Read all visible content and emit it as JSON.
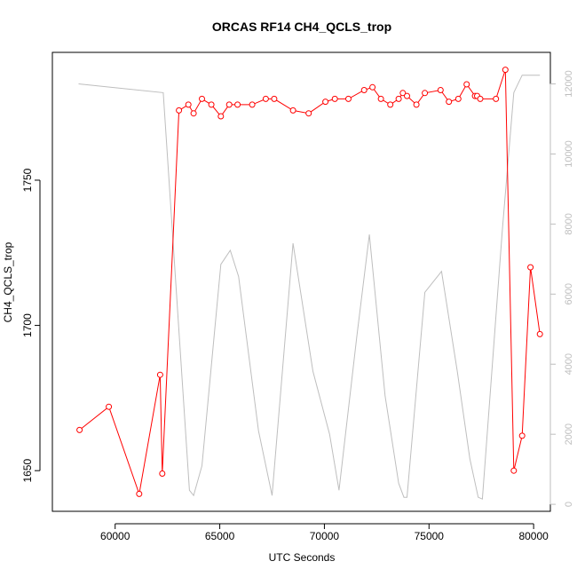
{
  "chart_data": {
    "type": "line",
    "title": "ORCAS RF14 CH4_QCLS_trop",
    "xlabel": "UTC Seconds",
    "ylabel": "CH4_QCLS_trop",
    "xlim": [
      57000,
      80800
    ],
    "ylim": [
      1636,
      1794
    ],
    "y2lim": [
      -200,
      12900
    ],
    "x_ticks": [
      60000,
      65000,
      70000,
      75000,
      80000
    ],
    "y_ticks": [
      1650,
      1700,
      1750
    ],
    "y2_ticks": [
      0,
      2000,
      4000,
      6000,
      8000,
      10000,
      12000
    ],
    "colors": {
      "primary": "#ff0000",
      "secondary": "#bebebe",
      "axis": "#000000"
    },
    "series": [
      {
        "axis": "left",
        "style": "line-with-open-circles",
        "x": [
          58300,
          59700,
          61150,
          62150,
          62250,
          63050,
          63500,
          63750,
          64150,
          64600,
          65050,
          65450,
          65850,
          66550,
          67200,
          67600,
          68500,
          69250,
          70050,
          70500,
          71150,
          71900,
          72300,
          72700,
          73150,
          73550,
          73750,
          73950,
          74400,
          74800,
          75550,
          75950,
          76400,
          76800,
          77200,
          77300,
          77450,
          78200,
          78650,
          79050,
          79450,
          79850,
          80300
        ],
        "y": [
          1664,
          1672,
          1642,
          1683,
          1649,
          1774,
          1776,
          1773,
          1778,
          1776,
          1772,
          1776,
          1776,
          1776,
          1778,
          1778,
          1774,
          1773,
          1777,
          1778,
          1778,
          1781,
          1782,
          1778,
          1776,
          1778,
          1780,
          1779,
          1776,
          1780,
          1781,
          1777,
          1778,
          1783,
          1779,
          1779,
          1778,
          1778,
          1788,
          1650,
          1662,
          1720,
          1697
        ]
      },
      {
        "axis": "right",
        "style": "line",
        "x": [
          58250,
          62300,
          63550,
          63750,
          64150,
          65050,
          65500,
          65900,
          66850,
          67500,
          68500,
          69450,
          70250,
          70700,
          71550,
          72150,
          72900,
          73550,
          73800,
          73950,
          74800,
          75600,
          76350,
          76950,
          77350,
          77550,
          78500,
          79050,
          79450,
          80300
        ],
        "y": [
          12000,
          11750,
          400,
          250,
          1100,
          6850,
          7250,
          6500,
          2100,
          250,
          7450,
          3800,
          2000,
          400,
          4800,
          7700,
          3100,
          600,
          200,
          200,
          6050,
          6650,
          3800,
          1300,
          200,
          150,
          7800,
          11750,
          12250,
          12250
        ]
      }
    ]
  }
}
